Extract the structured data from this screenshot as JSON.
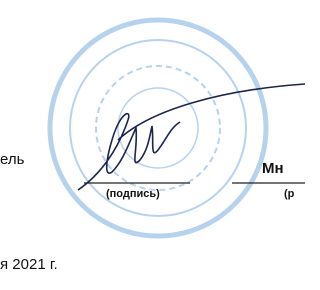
{
  "signature_block": {
    "position_fragment": "ель",
    "signature_caption": "(подпись)",
    "name_fragment": "Мн",
    "name_caption_fragment": "(р",
    "date_fragment": "я 2021 г."
  }
}
